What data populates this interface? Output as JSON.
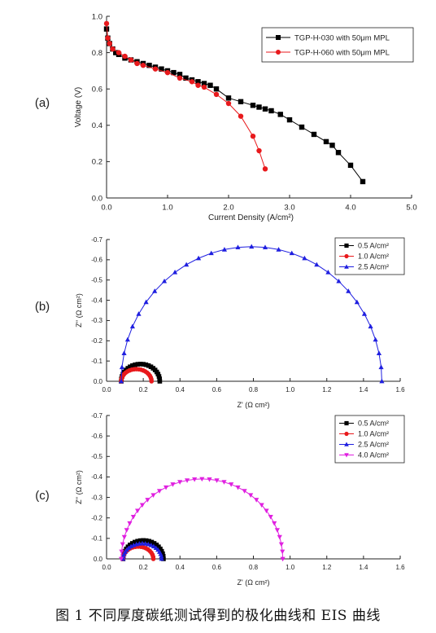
{
  "caption": "图 1  不同厚度碳纸测试得到的极化曲线和 EIS 曲线",
  "chart_data": [
    {
      "panel_label": "(a)",
      "type": "line",
      "title": "",
      "xlabel": "Current Density (A/cm²)",
      "ylabel": "Voltage (V)",
      "xlim": [
        0,
        5
      ],
      "ylim": [
        0,
        1
      ],
      "xticks": [
        "0.0",
        "1.0",
        "2.0",
        "3.0",
        "4.0",
        "5.0"
      ],
      "yticks": [
        "0.0",
        "0.2",
        "0.4",
        "0.6",
        "0.8",
        "1.0"
      ],
      "legend_position": "top-right",
      "series": [
        {
          "name": "TGP-H-030 with 50μm MPL",
          "color": "#000000",
          "marker": "square",
          "x": [
            0.0,
            0.02,
            0.05,
            0.1,
            0.15,
            0.2,
            0.3,
            0.4,
            0.5,
            0.6,
            0.7,
            0.8,
            0.9,
            1.0,
            1.1,
            1.2,
            1.3,
            1.4,
            1.5,
            1.6,
            1.7,
            1.8,
            2.0,
            2.2,
            2.4,
            2.5,
            2.6,
            2.7,
            2.85,
            3.0,
            3.2,
            3.4,
            3.6,
            3.7,
            3.8,
            4.0,
            4.2
          ],
          "y": [
            0.93,
            0.88,
            0.85,
            0.82,
            0.8,
            0.79,
            0.77,
            0.76,
            0.75,
            0.74,
            0.73,
            0.72,
            0.71,
            0.7,
            0.69,
            0.68,
            0.66,
            0.65,
            0.64,
            0.63,
            0.62,
            0.6,
            0.55,
            0.53,
            0.51,
            0.5,
            0.49,
            0.48,
            0.46,
            0.43,
            0.39,
            0.35,
            0.31,
            0.29,
            0.25,
            0.18,
            0.09
          ]
        },
        {
          "name": "TGP-H-060 with 50μm MPL",
          "color": "#e8191c",
          "marker": "circle",
          "x": [
            0.0,
            0.02,
            0.05,
            0.1,
            0.2,
            0.3,
            0.4,
            0.5,
            0.6,
            0.8,
            1.0,
            1.2,
            1.4,
            1.5,
            1.6,
            1.8,
            2.0,
            2.2,
            2.4,
            2.5,
            2.6
          ],
          "y": [
            0.96,
            0.88,
            0.85,
            0.82,
            0.8,
            0.78,
            0.76,
            0.74,
            0.73,
            0.71,
            0.69,
            0.66,
            0.64,
            0.62,
            0.61,
            0.57,
            0.52,
            0.45,
            0.34,
            0.26,
            0.16
          ]
        }
      ]
    },
    {
      "panel_label": "(b)",
      "type": "scatter",
      "title": "",
      "xlabel": "Z' (Ω cm²)",
      "ylabel": "Z'' (Ω cm²)",
      "xlim": [
        0,
        1.6
      ],
      "ylim": [
        0,
        -0.7
      ],
      "xticks": [
        "0.0",
        "0.2",
        "0.4",
        "0.6",
        "0.8",
        "1.0",
        "1.2",
        "1.4",
        "1.6"
      ],
      "yticks": [
        "0.0",
        "-0.1",
        "-0.2",
        "-0.3",
        "-0.4",
        "-0.5",
        "-0.6",
        "-0.7"
      ],
      "legend_position": "top-right",
      "series": [
        {
          "name": "0.5 A/cm²",
          "color": "#000000",
          "marker": "square",
          "arc_start": 0.08,
          "arc_end": 0.29,
          "arc_peak": -0.085,
          "n": 22,
          "x": [
            0.08,
            0.085,
            0.095,
            0.11,
            0.13,
            0.15,
            0.17,
            0.19,
            0.21,
            0.23,
            0.25,
            0.27,
            0.285,
            0.29
          ],
          "y": [
            0.0,
            -0.025,
            -0.045,
            -0.062,
            -0.075,
            -0.083,
            -0.085,
            -0.083,
            -0.076,
            -0.065,
            -0.05,
            -0.03,
            -0.012,
            0.0
          ]
        },
        {
          "name": "1.0 A/cm²",
          "color": "#e8191c",
          "marker": "circle",
          "arc_start": 0.08,
          "arc_end": 0.245,
          "arc_peak": -0.06,
          "n": 20,
          "x": [
            0.08,
            0.09,
            0.1,
            0.12,
            0.14,
            0.16,
            0.18,
            0.2,
            0.22,
            0.24,
            0.245
          ],
          "y": [
            0.0,
            -0.025,
            -0.04,
            -0.052,
            -0.058,
            -0.06,
            -0.058,
            -0.05,
            -0.037,
            -0.015,
            0.0
          ]
        },
        {
          "name": "2.5 A/cm²",
          "color": "#1f1fe0",
          "marker": "triangle-up",
          "arc_start": 0.08,
          "arc_end": 1.5,
          "arc_peak": -0.665,
          "n": 30,
          "x": [
            0.08,
            0.1,
            0.12,
            0.15,
            0.19,
            0.25,
            0.32,
            0.4,
            0.5,
            0.6,
            0.72,
            0.86,
            1.02,
            1.14,
            1.24,
            1.32,
            1.39,
            1.44,
            1.47,
            1.49,
            1.5
          ],
          "y": [
            0.0,
            -0.1,
            -0.15,
            -0.2,
            -0.26,
            -0.33,
            -0.4,
            -0.47,
            -0.54,
            -0.6,
            -0.645,
            -0.665,
            -0.65,
            -0.6,
            -0.52,
            -0.44,
            -0.34,
            -0.24,
            -0.15,
            -0.07,
            0.0
          ]
        }
      ]
    },
    {
      "panel_label": "(c)",
      "type": "scatter",
      "title": "",
      "xlabel": "Z' (Ω cm²)",
      "ylabel": "Z'' (Ω cm²)",
      "xlim": [
        0,
        1.6
      ],
      "ylim": [
        0,
        -0.7
      ],
      "xticks": [
        "0.0",
        "0.2",
        "0.4",
        "0.6",
        "0.8",
        "1.0",
        "1.2",
        "1.4",
        "1.6"
      ],
      "yticks": [
        "0.0",
        "-0.1",
        "-0.2",
        "-0.3",
        "-0.4",
        "-0.5",
        "-0.6",
        "-0.7"
      ],
      "legend_position": "top-right",
      "series": [
        {
          "name": "0.5 A/cm²",
          "color": "#000000",
          "marker": "square",
          "arc_start": 0.09,
          "arc_end": 0.31,
          "arc_peak": -0.09,
          "n": 22,
          "x": [
            0.09,
            0.1,
            0.12,
            0.15,
            0.18,
            0.21,
            0.24,
            0.27,
            0.29,
            0.305,
            0.31
          ],
          "y": [
            0.0,
            -0.04,
            -0.065,
            -0.082,
            -0.089,
            -0.09,
            -0.085,
            -0.07,
            -0.05,
            -0.025,
            0.0
          ]
        },
        {
          "name": "1.0 A/cm²",
          "color": "#e8191c",
          "marker": "circle",
          "arc_start": 0.09,
          "arc_end": 0.255,
          "arc_peak": -0.06,
          "n": 18,
          "x": [
            0.09,
            0.1,
            0.12,
            0.15,
            0.18,
            0.21,
            0.24,
            0.255
          ],
          "y": [
            0.0,
            -0.03,
            -0.05,
            -0.06,
            -0.058,
            -0.045,
            -0.022,
            0.0
          ]
        },
        {
          "name": "2.5 A/cm²",
          "color": "#1f1fe0",
          "marker": "triangle-up",
          "arc_start": 0.09,
          "arc_end": 0.3,
          "arc_peak": -0.075,
          "n": 20,
          "x": [
            0.09,
            0.1,
            0.12,
            0.15,
            0.18,
            0.21,
            0.24,
            0.27,
            0.29,
            0.3
          ],
          "y": [
            0.0,
            -0.035,
            -0.055,
            -0.07,
            -0.075,
            -0.072,
            -0.062,
            -0.045,
            -0.022,
            0.0
          ]
        },
        {
          "name": "4.0 A/cm²",
          "color": "#e020e0",
          "marker": "triangle-down",
          "arc_start": 0.08,
          "arc_end": 0.96,
          "arc_peak": -0.39,
          "n": 34,
          "x": [
            0.08,
            0.09,
            0.11,
            0.14,
            0.18,
            0.23,
            0.29,
            0.36,
            0.44,
            0.52,
            0.6,
            0.68,
            0.75,
            0.82,
            0.87,
            0.91,
            0.94,
            0.955,
            0.96
          ],
          "y": [
            0.0,
            -0.06,
            -0.11,
            -0.16,
            -0.21,
            -0.26,
            -0.31,
            -0.35,
            -0.38,
            -0.39,
            -0.385,
            -0.36,
            -0.32,
            -0.26,
            -0.2,
            -0.14,
            -0.08,
            -0.03,
            0.0
          ]
        }
      ]
    }
  ]
}
